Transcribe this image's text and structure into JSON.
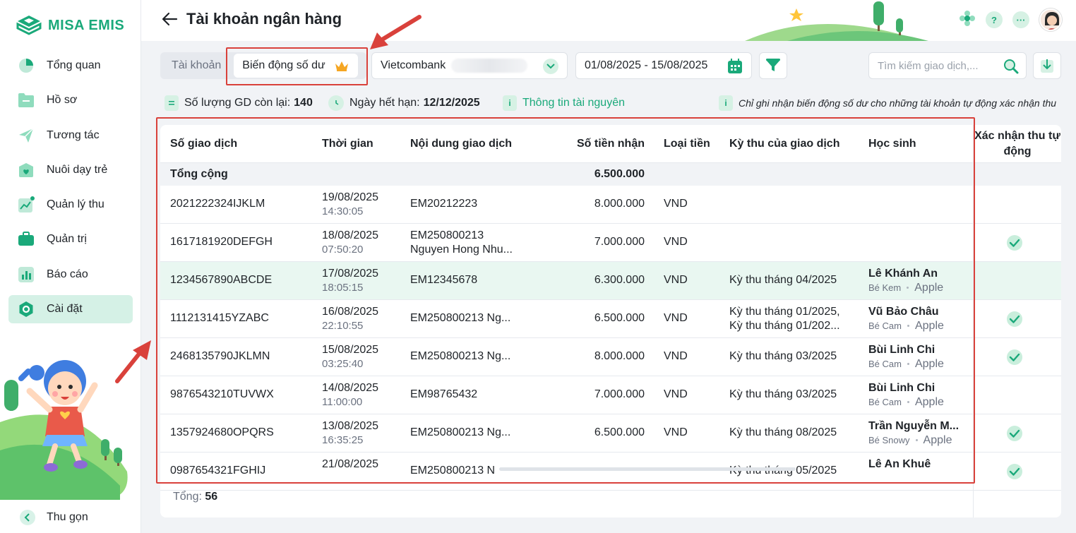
{
  "sidebar": {
    "logo_text": "MISA EMIS",
    "items": [
      {
        "label": "Tổng quan",
        "icon": "pie-chart-icon"
      },
      {
        "label": "Hồ sơ",
        "icon": "folder-icon"
      },
      {
        "label": "Tương tác",
        "icon": "send-icon"
      },
      {
        "label": "Nuôi dạy trẻ",
        "icon": "heart-icon"
      },
      {
        "label": "Quản lý thu",
        "icon": "revenue-icon"
      },
      {
        "label": "Quản trị",
        "icon": "briefcase-icon"
      },
      {
        "label": "Báo cáo",
        "icon": "bar-chart-icon"
      },
      {
        "label": "Cài đặt",
        "icon": "settings-icon"
      }
    ],
    "active_item": "Cài đặt",
    "collapse_label": "Thu gọn"
  },
  "header": {
    "title": "Tài khoản ngân hàng",
    "help_glyph": "?",
    "more_glyph": "···"
  },
  "toolbar": {
    "tabs": [
      {
        "label": "Tài khoản"
      },
      {
        "label": "Biến động số dư"
      }
    ],
    "active_tab": "Biến động số dư",
    "bank_select": "Vietcombank",
    "date_range": "01/08/2025 - 15/08/2025",
    "search_placeholder": "Tìm kiếm giao dịch,..."
  },
  "info": {
    "remaining_label": "Số lượng GD còn lại:",
    "remaining_value": "140",
    "expiry_label": "Ngày hết hạn:",
    "expiry_value": "12/12/2025",
    "resource_link": "Thông tin tài nguyên",
    "note": "Chỉ ghi nhận biến động số dư cho những tài khoản tự động xác nhận thu",
    "info_glyph": "i"
  },
  "table": {
    "columns": [
      "Số giao dịch",
      "Thời gian",
      "Nội dung giao dịch",
      "Số tiền nhận",
      "Loại tiền",
      "Kỳ thu của giao dịch",
      "Học sinh",
      "Xác nhận thu tự động"
    ],
    "total_label": "Tổng cộng",
    "total_amount": "6.500.000",
    "rows": [
      {
        "id": "2021222324IJKLM",
        "date": "19/08/2025",
        "time": "14:30:05",
        "content1": "EM20212223",
        "content2": "",
        "amount": "8.000.000",
        "currency": "VND",
        "period1": "",
        "period2": "",
        "student": "",
        "pet": "",
        "school": "",
        "confirmed": false,
        "highlight": false
      },
      {
        "id": "1617181920DEFGH",
        "date": "18/08/2025",
        "time": "07:50:20",
        "content1": "EM250800213",
        "content2": "Nguyen Hong Nhu...",
        "amount": "7.000.000",
        "currency": "VND",
        "period1": "",
        "period2": "",
        "student": "",
        "pet": "",
        "school": "",
        "confirmed": true,
        "highlight": false
      },
      {
        "id": "1234567890ABCDE",
        "date": "17/08/2025",
        "time": "18:05:15",
        "content1": "EM12345678",
        "content2": "",
        "amount": "6.300.000",
        "currency": "VND",
        "period1": "Kỳ thu tháng 04/2025",
        "period2": "",
        "student": "Lê Khánh An",
        "pet": "Bé Kem",
        "school": "Apple",
        "confirmed": false,
        "highlight": true
      },
      {
        "id": "1112131415YZABC",
        "date": "16/08/2025",
        "time": "22:10:55",
        "content1": "EM250800213 Ng...",
        "content2": "",
        "amount": "6.500.000",
        "currency": "VND",
        "period1": "Kỳ thu tháng 01/2025,",
        "period2": "Kỳ thu tháng 01/202...",
        "student": "Vũ Bảo Châu",
        "pet": "Bé Cam",
        "school": "Apple",
        "confirmed": true,
        "highlight": false
      },
      {
        "id": "2468135790JKLMN",
        "date": "15/08/2025",
        "time": "03:25:40",
        "content1": "EM250800213 Ng...",
        "content2": "",
        "amount": "8.000.000",
        "currency": "VND",
        "period1": "Kỳ thu tháng 03/2025",
        "period2": "",
        "student": "Bùi Linh Chi",
        "pet": "Bé Cam",
        "school": "Apple",
        "confirmed": true,
        "highlight": false
      },
      {
        "id": "9876543210TUVWX",
        "date": "14/08/2025",
        "time": "11:00:00",
        "content1": "EM98765432",
        "content2": "",
        "amount": "7.000.000",
        "currency": "VND",
        "period1": "Kỳ thu tháng 03/2025",
        "period2": "",
        "student": "Bùi Linh Chi",
        "pet": "Bé Cam",
        "school": "Apple",
        "confirmed": false,
        "highlight": false
      },
      {
        "id": "1357924680OPQRS",
        "date": "13/08/2025",
        "time": "16:35:25",
        "content1": "EM250800213 Ng...",
        "content2": "",
        "amount": "6.500.000",
        "currency": "VND",
        "period1": "Kỳ thu tháng 08/2025",
        "period2": "",
        "student": "Trần Nguyễn M...",
        "pet": "Bé Snowy",
        "school": "Apple",
        "confirmed": true,
        "highlight": false
      },
      {
        "id": "0987654321FGHIJ",
        "date": "21/08/2025",
        "time": "",
        "content1": "EM250800213 N",
        "content2": "",
        "amount": "",
        "currency": "",
        "period1": "Kỳ thu tháng 05/2025",
        "period2": "",
        "student": "Lê An Khuê",
        "pet": "",
        "school": "",
        "confirmed": true,
        "highlight": false
      }
    ],
    "total_count_label": "Tổng:",
    "total_count": "56"
  },
  "colors": {
    "accent": "#1aa97a",
    "highlight_row": "#e9f7f1",
    "annotation_red": "#d9413b"
  }
}
